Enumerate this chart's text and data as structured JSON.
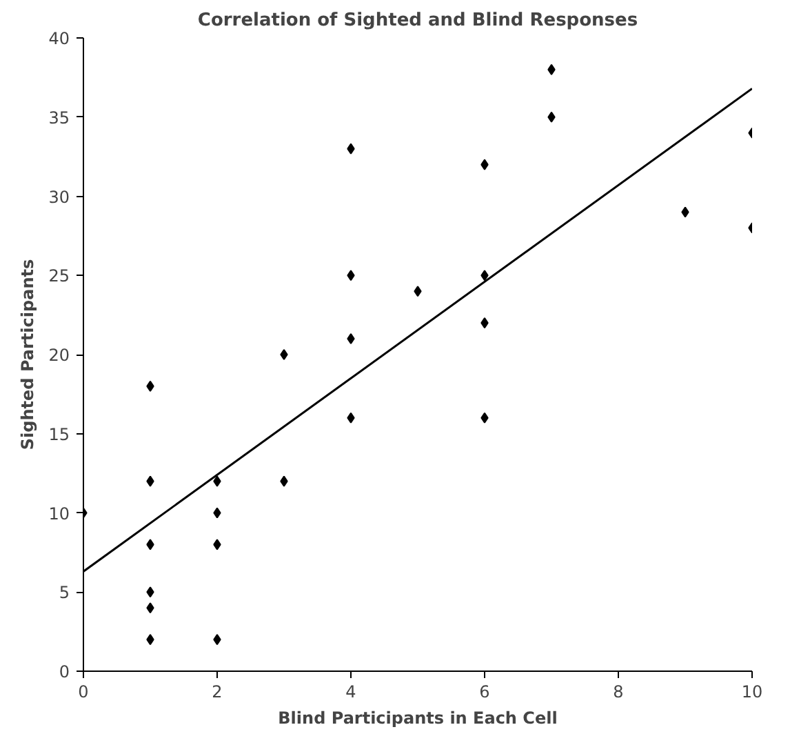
{
  "chart_data": {
    "type": "scatter",
    "title": "Correlation of Sighted and Blind Responses",
    "xlabel": "Blind Participants in Each Cell",
    "ylabel": "Sighted Participants",
    "grid": false,
    "xlim": [
      0,
      10
    ],
    "xticks": [
      0,
      2,
      4,
      6,
      8,
      10
    ],
    "ylim": [
      0,
      40
    ],
    "yticks": [
      0,
      5,
      10,
      15,
      20,
      25,
      30,
      35,
      40
    ],
    "series": [
      {
        "color": "#000000",
        "marker": "diamond",
        "x": [
          0,
          1,
          1,
          1,
          1,
          1,
          1,
          2,
          2,
          2,
          2,
          3,
          3,
          4,
          4,
          4,
          4,
          5,
          6,
          6,
          6,
          6,
          7,
          7,
          9,
          10,
          10
        ],
        "values": [
          10,
          18,
          12,
          8,
          5,
          4,
          2,
          12,
          10,
          8,
          2,
          20,
          12,
          33,
          25,
          21,
          16,
          24,
          32,
          25,
          22,
          16,
          38,
          35,
          29,
          34,
          28
        ]
      },
      {
        "type": "line",
        "marker": "none",
        "color": "#000000",
        "x": [
          0,
          10
        ],
        "values": [
          6.3,
          36.8
        ]
      }
    ]
  }
}
